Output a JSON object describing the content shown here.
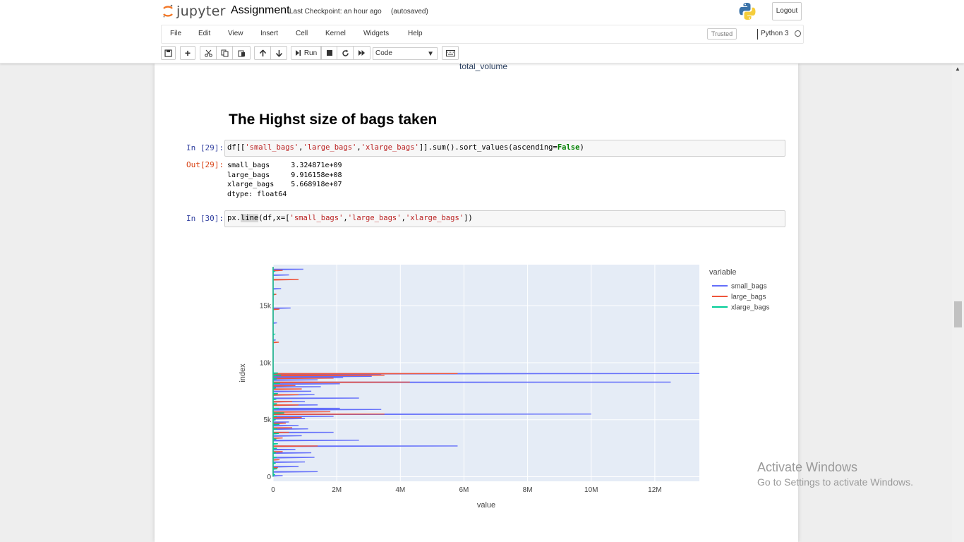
{
  "header": {
    "logo_text": "jupyter",
    "notebook_name": "Assignment",
    "checkpoint": "Last Checkpoint: an hour ago",
    "autosave": "(autosaved)",
    "logout": "Logout"
  },
  "menu": {
    "items": [
      "File",
      "Edit",
      "View",
      "Insert",
      "Cell",
      "Kernel",
      "Widgets",
      "Help"
    ],
    "trusted": "Trusted",
    "kernel": "Python 3"
  },
  "toolbar": {
    "run_label": "Run",
    "cell_type": "Code"
  },
  "notebook": {
    "prev_output": "total_volume",
    "heading": "The Highst size of bags taken",
    "cell29": {
      "in_prompt": "In [29]:",
      "out_prompt": "Out[29]:",
      "output": "small_bags     3.324871e+09\nlarge_bags     9.916158e+08\nxlarge_bags    5.668918e+07\ndtype: float64"
    },
    "cell30": {
      "in_prompt": "In [30]:"
    }
  },
  "chart_data": {
    "type": "line",
    "xlabel": "value",
    "ylabel": "index",
    "xlim": [
      0,
      13400000
    ],
    "ylim": [
      -400,
      18600
    ],
    "x_ticks": [
      "0",
      "2M",
      "4M",
      "6M",
      "8M",
      "10M",
      "12M"
    ],
    "y_ticks": [
      "0",
      "5k",
      "10k",
      "15k"
    ],
    "legend_title": "variable",
    "legend_position": "right",
    "grid": true,
    "series": [
      {
        "name": "small_bags",
        "color": "#636efa",
        "spikes": [
          [
            18200,
            950000
          ],
          [
            17700,
            500000
          ],
          [
            16500,
            250000
          ],
          [
            14800,
            550000
          ],
          [
            13500,
            120000
          ],
          [
            12000,
            80000
          ],
          [
            9050,
            13400000
          ],
          [
            8950,
            3400000
          ],
          [
            8800,
            3100000
          ],
          [
            8700,
            2200000
          ],
          [
            8500,
            1400000
          ],
          [
            8300,
            12500000
          ],
          [
            8150,
            2100000
          ],
          [
            7900,
            1500000
          ],
          [
            7500,
            1200000
          ],
          [
            7200,
            1300000
          ],
          [
            6900,
            2700000
          ],
          [
            6600,
            1000000
          ],
          [
            6300,
            1400000
          ],
          [
            6000,
            2100000
          ],
          [
            5900,
            3400000
          ],
          [
            5500,
            10000000
          ],
          [
            5300,
            1900000
          ],
          [
            5100,
            1000000
          ],
          [
            4800,
            500000
          ],
          [
            4500,
            800000
          ],
          [
            4200,
            1100000
          ],
          [
            3900,
            1900000
          ],
          [
            3600,
            900000
          ],
          [
            3200,
            2700000
          ],
          [
            2700,
            5800000
          ],
          [
            2400,
            700000
          ],
          [
            2100,
            1200000
          ],
          [
            1700,
            1300000
          ],
          [
            1300,
            1000000
          ],
          [
            900,
            800000
          ],
          [
            450,
            1400000
          ],
          [
            100,
            300000
          ]
        ]
      },
      {
        "name": "large_bags",
        "color": "#ef553b",
        "spikes": [
          [
            18100,
            300000
          ],
          [
            17300,
            800000
          ],
          [
            16000,
            100000
          ],
          [
            14700,
            200000
          ],
          [
            11800,
            180000
          ],
          [
            9050,
            5800000
          ],
          [
            8900,
            3500000
          ],
          [
            8650,
            1900000
          ],
          [
            8300,
            4300000
          ],
          [
            8000,
            700000
          ],
          [
            7700,
            900000
          ],
          [
            7200,
            800000
          ],
          [
            6600,
            600000
          ],
          [
            6300,
            800000
          ],
          [
            5700,
            1800000
          ],
          [
            5500,
            3500000
          ],
          [
            5200,
            900000
          ],
          [
            4700,
            400000
          ],
          [
            4300,
            600000
          ],
          [
            3900,
            500000
          ],
          [
            3400,
            300000
          ],
          [
            2700,
            1400000
          ],
          [
            2200,
            300000
          ],
          [
            1500,
            200000
          ],
          [
            800,
            150000
          ]
        ]
      },
      {
        "name": "xlarge_bags",
        "color": "#00cc96",
        "spikes": [
          [
            18000,
            30000
          ],
          [
            16000,
            20000
          ],
          [
            12500,
            30000
          ],
          [
            9100,
            150000
          ],
          [
            8900,
            250000
          ],
          [
            8600,
            120000
          ],
          [
            8200,
            220000
          ],
          [
            7800,
            90000
          ],
          [
            7300,
            150000
          ],
          [
            6800,
            100000
          ],
          [
            6400,
            120000
          ],
          [
            6000,
            180000
          ],
          [
            5600,
            350000
          ],
          [
            5300,
            120000
          ],
          [
            5000,
            80000
          ],
          [
            4600,
            200000
          ],
          [
            4200,
            130000
          ],
          [
            3800,
            180000
          ],
          [
            3300,
            100000
          ],
          [
            2900,
            150000
          ],
          [
            2500,
            120000
          ],
          [
            2100,
            90000
          ],
          [
            1700,
            110000
          ],
          [
            1200,
            80000
          ],
          [
            700,
            130000
          ],
          [
            200,
            60000
          ]
        ]
      }
    ]
  }
}
